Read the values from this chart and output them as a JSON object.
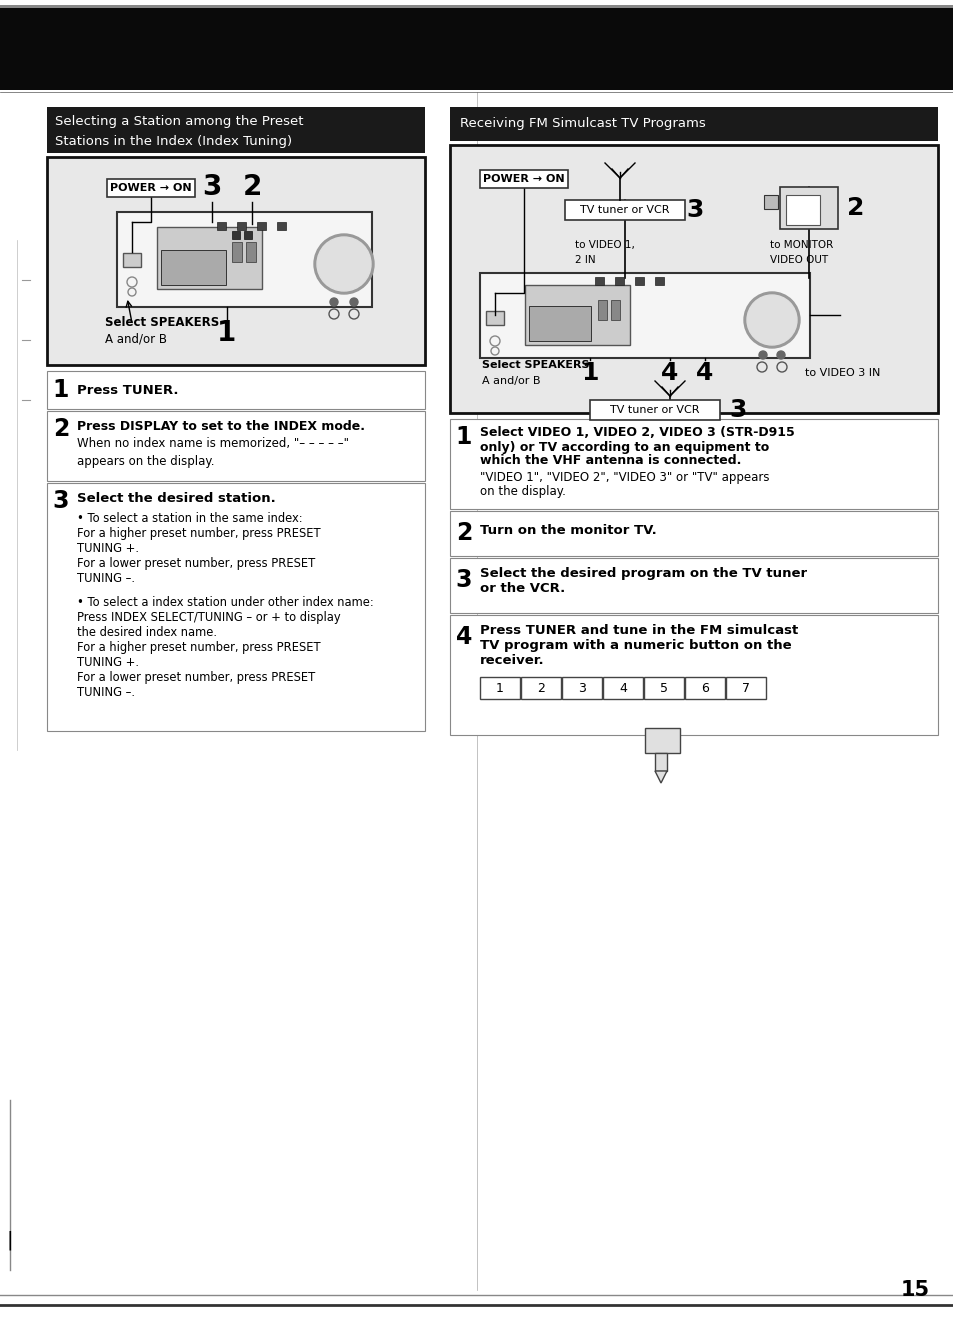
{
  "page_bg": "#ffffff",
  "header_bg": "#111111",
  "section_header_bg": "#1a1a1a",
  "border_color": "#222222",
  "text_color": "#000000",
  "page_number": "15",
  "left_section_title_line1": "Selecting a Station among the Preset",
  "left_section_title_line2": "Stations in the Index (Index Tuning)",
  "right_section_title": "Receiving FM Simulcast TV Programs",
  "step1_bold": "Press TUNER.",
  "step2_bold": "Press DISPLAY to set to the INDEX mode.",
  "step2_normal1": "When no index name is memorized, \"– – – – –\"",
  "step2_normal2": "appears on the display.",
  "step3_bold": "Select the desired station.",
  "b1_lines": [
    "• To select a station in the same index:",
    "For a higher preset number, press PRESET",
    "TUNING +.",
    "For a lower preset number, press PRESET",
    "TUNING –."
  ],
  "b2_lines": [
    "• To select a index station under other index name:",
    "Press INDEX SELECT/TUNING – or + to display",
    "the desired index name.",
    "For a higher preset number, press PRESET",
    "TUNING +.",
    "For a lower preset number, press PRESET",
    "TUNING –."
  ],
  "rs1_line1": "Select VIDEO 1, VIDEO 2, VIDEO 3 (STR-D915",
  "rs1_line2": "only) or TV according to an equipment to",
  "rs1_line3": "which the VHF antenna is connected.",
  "rs1_norm1": "\"VIDEO 1\", \"VIDEO 2\", \"VIDEO 3\" or \"TV\" appears",
  "rs1_norm2": "on the display.",
  "rs2_bold": "Turn on the monitor TV.",
  "rs3_bold1": "Select the desired program on the TV tuner",
  "rs3_bold2": "or the VCR.",
  "rs4_bold1": "Press TUNER and tune in the FM simulcast",
  "rs4_bold2": "TV program with a numeric button on the",
  "rs4_bold3": "receiver.",
  "numeric_buttons": [
    "1",
    "2",
    "3",
    "4",
    "5",
    "6",
    "7"
  ]
}
